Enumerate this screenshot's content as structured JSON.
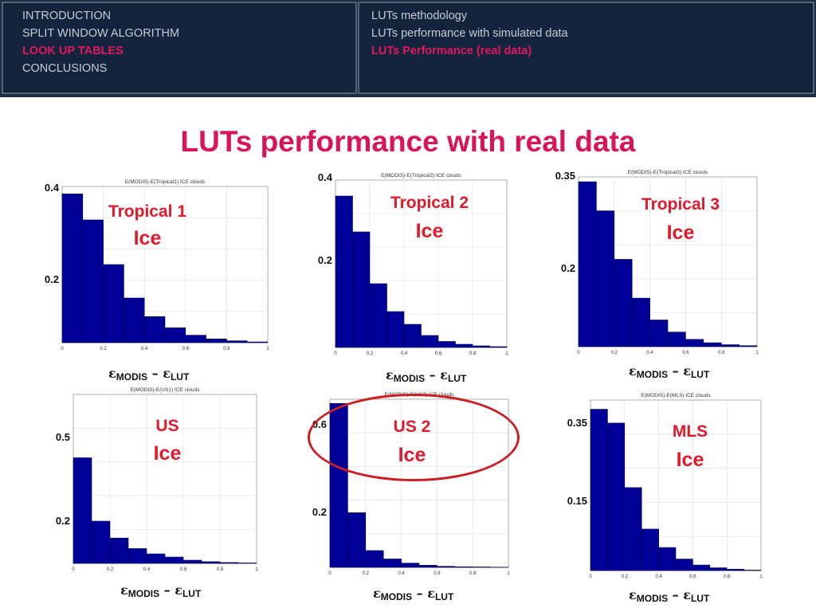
{
  "nav": {
    "left": [
      {
        "label": "INTRODUCTION",
        "active": false
      },
      {
        "label": "SPLIT WINDOW ALGORITHM",
        "active": false
      },
      {
        "label": "LOOK UP TABLES",
        "active": true
      },
      {
        "label": "CONCLUSIONS",
        "active": false
      }
    ],
    "right": [
      {
        "label": "LUTs methodology",
        "active": false
      },
      {
        "label": "LUTs performance with simulated data",
        "active": false
      },
      {
        "label": "LUTs Performance (real data)",
        "active": true
      }
    ]
  },
  "title": "LUTs performance with real data",
  "xlabel_parts": {
    "eps": "ε",
    "modis": "MODIS",
    "minus": " – ",
    "lut": "LUT"
  },
  "colors": {
    "bar": "#000099",
    "accent": "#d91457",
    "label": "#e0192b",
    "highlight": "#cc1f24"
  },
  "chart_data": [
    {
      "type": "bar",
      "plot_title": "E(MODIS)-E(Tropical1) ICE clouds",
      "label_line1": "Tropical 1",
      "label_line2": "Ice",
      "x_range": [
        0,
        1
      ],
      "x_ticks": [
        "0",
        "0.2",
        "0.4",
        "0.6",
        "0.8",
        "1"
      ],
      "bin_width": 0.1,
      "values": [
        0.4,
        0.33,
        0.21,
        0.12,
        0.07,
        0.04,
        0.02,
        0.01,
        0.005,
        0.002
      ],
      "yticks": [
        {
          "value": 0.4,
          "label": "0.4"
        },
        {
          "value": 0.2,
          "label": "0.2"
        }
      ],
      "ylim": [
        0,
        0.42
      ]
    },
    {
      "type": "bar",
      "plot_title": "E(MODIS)-E(Tropical2) ICE clouds",
      "label_line1": "Tropical 2",
      "label_line2": "Ice",
      "x_range": [
        0,
        1
      ],
      "x_ticks": [
        "0",
        "0.2",
        "0.4",
        "0.6",
        "0.8",
        "1"
      ],
      "bin_width": 0.1,
      "values": [
        0.38,
        0.29,
        0.16,
        0.09,
        0.058,
        0.03,
        0.015,
        0.008,
        0.004,
        0.002
      ],
      "yticks": [
        {
          "value": 0.4,
          "label": "0.4"
        },
        {
          "value": 0.2,
          "label": "0.2"
        }
      ],
      "ylim": [
        0,
        0.42
      ]
    },
    {
      "type": "bar",
      "plot_title": "E(MODIS)-E(Tropical3) ICE clouds",
      "label_line1": "Tropical 3",
      "label_line2": "Ice",
      "x_range": [
        0,
        1
      ],
      "x_ticks": [
        "0",
        "0.2",
        "0.4",
        "0.6",
        "0.8",
        "1"
      ],
      "bin_width": 0.1,
      "values": [
        0.34,
        0.28,
        0.18,
        0.1,
        0.055,
        0.03,
        0.015,
        0.008,
        0.004,
        0.002
      ],
      "yticks": [
        {
          "value": 0.35,
          "label": "0.35"
        },
        {
          "value": 0.2,
          "label": "0.2"
        }
      ],
      "ylim": [
        0,
        0.35
      ]
    },
    {
      "type": "bar",
      "plot_title": "E(MODIS)-E(US1) ICE clouds",
      "label_line1": "US",
      "label_line2": "Ice",
      "x_range": [
        0,
        1
      ],
      "x_ticks": [
        "0",
        "0.2",
        "0.4",
        "0.6",
        "0.8",
        "1"
      ],
      "bin_width": 0.1,
      "values": [
        0.5,
        0.2,
        0.12,
        0.07,
        0.045,
        0.03,
        0.015,
        0.008,
        0.004,
        0.002
      ],
      "yticks": [
        {
          "value": 0.5,
          "label": "0.5"
        },
        {
          "value": 0.2,
          "label": "0.2"
        }
      ],
      "ylim": [
        0,
        0.8
      ]
    },
    {
      "type": "bar",
      "plot_title": "E(MODIS)-E(US2) ICE clouds",
      "label_line1": "US 2",
      "label_line2": "Ice",
      "x_range": [
        0,
        1
      ],
      "x_ticks": [
        "0",
        "0.2",
        "0.4",
        "0.6",
        "0.8",
        "1"
      ],
      "bin_width": 0.1,
      "values": [
        0.78,
        0.26,
        0.08,
        0.04,
        0.02,
        0.01,
        0.005,
        0.003,
        0.002,
        0.001
      ],
      "yticks": [
        {
          "value": 0.6,
          "label": "0.6"
        },
        {
          "value": 0.2,
          "label": "0.2"
        }
      ],
      "ylim": [
        0,
        0.8
      ]
    },
    {
      "type": "bar",
      "plot_title": "E(MODIS)-E(MLS) ICE clouds",
      "label_line1": "MLS",
      "label_line2": "Ice",
      "x_range": [
        0,
        1
      ],
      "x_ticks": [
        "0",
        "0.2",
        "0.4",
        "0.6",
        "0.8",
        "1"
      ],
      "bin_width": 0.1,
      "values": [
        0.35,
        0.32,
        0.18,
        0.09,
        0.05,
        0.025,
        0.012,
        0.006,
        0.003,
        0.001
      ],
      "yticks": [
        {
          "value": 0.35,
          "label": "0.35"
        },
        {
          "value": 0.15,
          "label": "0.15"
        }
      ],
      "ylim": [
        0,
        0.37
      ]
    }
  ]
}
